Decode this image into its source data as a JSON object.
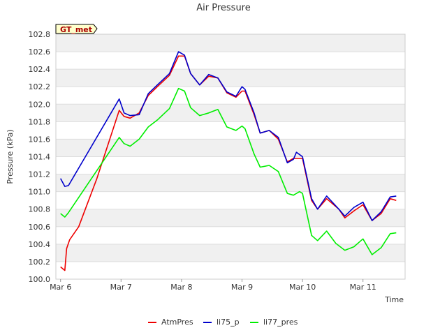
{
  "chart_data": {
    "type": "line",
    "title": "Air Pressure",
    "xlabel": "Time",
    "ylabel": "Pressure (kPa)",
    "ylim": [
      100.0,
      102.8
    ],
    "xlim": [
      0,
      5.8
    ],
    "yticks": [
      100.0,
      100.2,
      100.4,
      100.6,
      100.8,
      101.0,
      101.2,
      101.4,
      101.6,
      101.8,
      102.0,
      102.2,
      102.4,
      102.6,
      102.8
    ],
    "ytick_labels": [
      "100.0",
      "100.2",
      "100.4",
      "100.6",
      "100.8",
      "101.0",
      "101.2",
      "101.4",
      "101.6",
      "101.8",
      "102.0",
      "102.2",
      "102.4",
      "102.6",
      "102.8"
    ],
    "xticks": [
      0,
      1,
      2,
      3,
      4,
      5
    ],
    "xtick_labels": [
      "Mar 6",
      "Mar 7",
      "Mar 8",
      "Mar 9",
      "Mar 10",
      "Mar 11"
    ],
    "grid": true,
    "badge": "GT_met",
    "legend_position": "bottom",
    "series": [
      {
        "name": "AtmPres",
        "color": "#ee0000",
        "x": [
          0.0,
          0.07,
          0.1,
          0.15,
          0.3,
          0.6,
          0.97,
          1.05,
          1.15,
          1.3,
          1.45,
          1.6,
          1.8,
          1.95,
          2.05,
          2.15,
          2.3,
          2.45,
          2.6,
          2.75,
          2.9,
          3.0,
          3.05,
          3.2,
          3.3,
          3.45,
          3.6,
          3.75,
          3.85,
          4.0,
          4.15,
          4.25,
          4.4,
          4.6,
          4.7,
          4.85,
          5.0,
          5.15,
          5.3,
          5.45,
          5.55
        ],
        "y": [
          100.14,
          100.1,
          100.35,
          100.45,
          100.6,
          101.15,
          101.93,
          101.86,
          101.84,
          101.9,
          102.1,
          102.2,
          102.33,
          102.55,
          102.55,
          102.35,
          102.22,
          102.32,
          102.3,
          102.13,
          102.08,
          102.15,
          102.15,
          101.88,
          101.67,
          101.7,
          101.6,
          101.34,
          101.38,
          101.38,
          100.9,
          100.8,
          100.92,
          100.8,
          100.7,
          100.78,
          100.85,
          100.67,
          100.75,
          100.92,
          100.9
        ]
      },
      {
        "name": "li75_p",
        "color": "#0000cc",
        "x": [
          0.0,
          0.07,
          0.13,
          0.97,
          1.05,
          1.15,
          1.3,
          1.45,
          1.6,
          1.8,
          1.95,
          2.05,
          2.15,
          2.3,
          2.45,
          2.6,
          2.75,
          2.9,
          3.0,
          3.05,
          3.2,
          3.3,
          3.45,
          3.6,
          3.75,
          3.85,
          3.9,
          4.0,
          4.15,
          4.25,
          4.4,
          4.6,
          4.7,
          4.85,
          5.0,
          5.15,
          5.3,
          5.45,
          5.55
        ],
        "y": [
          101.15,
          101.06,
          101.07,
          102.06,
          101.9,
          101.87,
          101.88,
          102.12,
          102.22,
          102.35,
          102.6,
          102.56,
          102.35,
          102.22,
          102.34,
          102.3,
          102.14,
          102.09,
          102.2,
          102.17,
          101.9,
          101.67,
          101.7,
          101.62,
          101.33,
          101.37,
          101.45,
          101.4,
          100.92,
          100.8,
          100.95,
          100.8,
          100.72,
          100.82,
          100.88,
          100.67,
          100.77,
          100.94,
          100.95
        ]
      },
      {
        "name": "li77_pres",
        "color": "#00ee00",
        "x": [
          0.0,
          0.07,
          0.13,
          0.97,
          1.05,
          1.15,
          1.3,
          1.45,
          1.6,
          1.8,
          1.95,
          2.05,
          2.15,
          2.3,
          2.45,
          2.6,
          2.75,
          2.9,
          3.0,
          3.05,
          3.2,
          3.3,
          3.45,
          3.6,
          3.75,
          3.85,
          3.95,
          4.0,
          4.15,
          4.25,
          4.4,
          4.55,
          4.7,
          4.85,
          5.0,
          5.15,
          5.3,
          5.45,
          5.55
        ],
        "y": [
          100.75,
          100.71,
          100.76,
          101.62,
          101.55,
          101.52,
          101.6,
          101.74,
          101.82,
          101.95,
          102.18,
          102.15,
          101.96,
          101.87,
          101.9,
          101.94,
          101.74,
          101.7,
          101.75,
          101.72,
          101.43,
          101.28,
          101.3,
          101.23,
          100.98,
          100.96,
          101.0,
          100.98,
          100.5,
          100.44,
          100.55,
          100.41,
          100.33,
          100.37,
          100.46,
          100.28,
          100.36,
          100.52,
          100.53
        ]
      }
    ]
  }
}
